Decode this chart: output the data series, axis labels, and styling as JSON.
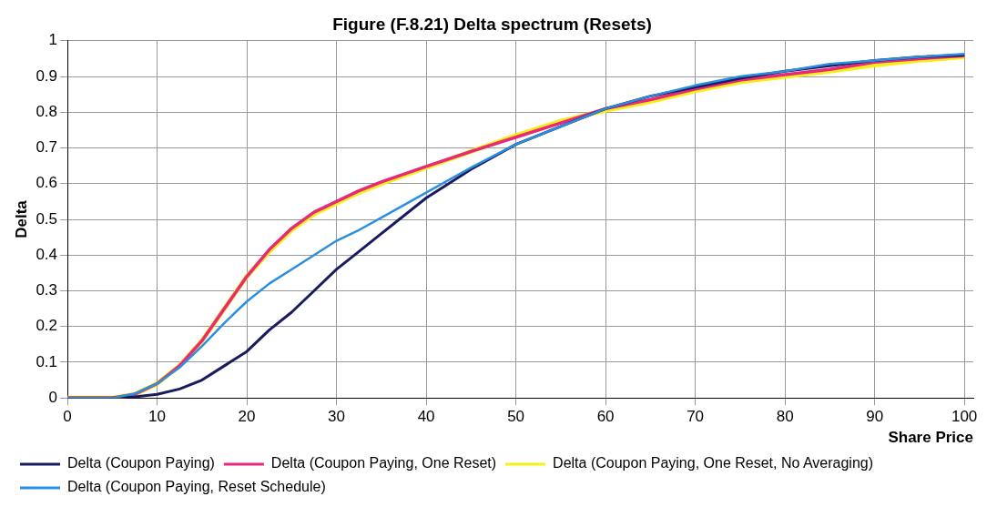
{
  "chart_data": {
    "type": "line",
    "title": "Figure (F.8.21) Delta spectrum (Resets)",
    "xlabel": "Share Price",
    "ylabel": "Delta",
    "x": [
      0,
      5,
      7.5,
      10,
      12.5,
      15,
      17.5,
      20,
      22.5,
      25,
      27.5,
      30,
      32.5,
      35,
      40,
      45,
      50,
      55,
      60,
      65,
      70,
      75,
      80,
      85,
      90,
      95,
      100
    ],
    "xlim": [
      0,
      101
    ],
    "xticks": [
      0,
      10,
      20,
      30,
      40,
      50,
      60,
      70,
      80,
      90,
      100
    ],
    "ylim": [
      0,
      1
    ],
    "yticks": [
      0,
      0.1,
      0.2,
      0.3,
      0.4,
      0.5,
      0.6,
      0.7,
      0.8,
      0.9,
      1
    ],
    "grid": true,
    "legend": "bottom",
    "marker": "none",
    "line_style": "solid",
    "series": [
      {
        "name": "Delta (Coupon Paying)",
        "color": "#1a1a5e",
        "values": [
          0,
          0,
          0.003,
          0.01,
          0.025,
          0.05,
          0.09,
          0.13,
          0.19,
          0.24,
          0.3,
          0.36,
          0.41,
          0.46,
          0.56,
          0.64,
          0.71,
          0.76,
          0.81,
          0.845,
          0.87,
          0.895,
          0.915,
          0.93,
          0.945,
          0.955,
          0.96
        ]
      },
      {
        "name": "Delta (Coupon Paying, One Reset)",
        "color": "#e8297a",
        "values": [
          0,
          0,
          0.01,
          0.04,
          0.09,
          0.16,
          0.25,
          0.34,
          0.415,
          0.475,
          0.52,
          0.55,
          0.58,
          0.605,
          0.648,
          0.69,
          0.73,
          0.77,
          0.81,
          0.835,
          0.865,
          0.89,
          0.905,
          0.92,
          0.94,
          0.95,
          0.958
        ]
      },
      {
        "name": "Delta (Coupon Paying, One Reset, No Averaging)",
        "color": "#f5f01a",
        "values": [
          0,
          0,
          0.01,
          0.04,
          0.09,
          0.16,
          0.25,
          0.34,
          0.41,
          0.47,
          0.515,
          0.545,
          0.575,
          0.6,
          0.645,
          0.69,
          0.735,
          0.775,
          0.805,
          0.83,
          0.86,
          0.885,
          0.9,
          0.915,
          0.932,
          0.945,
          0.955
        ]
      },
      {
        "name": "Delta (Coupon Paying, Reset Schedule)",
        "color": "#2b8fe0",
        "values": [
          0,
          0,
          0.012,
          0.04,
          0.085,
          0.145,
          0.21,
          0.27,
          0.32,
          0.36,
          0.4,
          0.44,
          0.47,
          0.505,
          0.575,
          0.645,
          0.71,
          0.76,
          0.81,
          0.845,
          0.875,
          0.9,
          0.915,
          0.935,
          0.945,
          0.955,
          0.963
        ]
      }
    ]
  }
}
